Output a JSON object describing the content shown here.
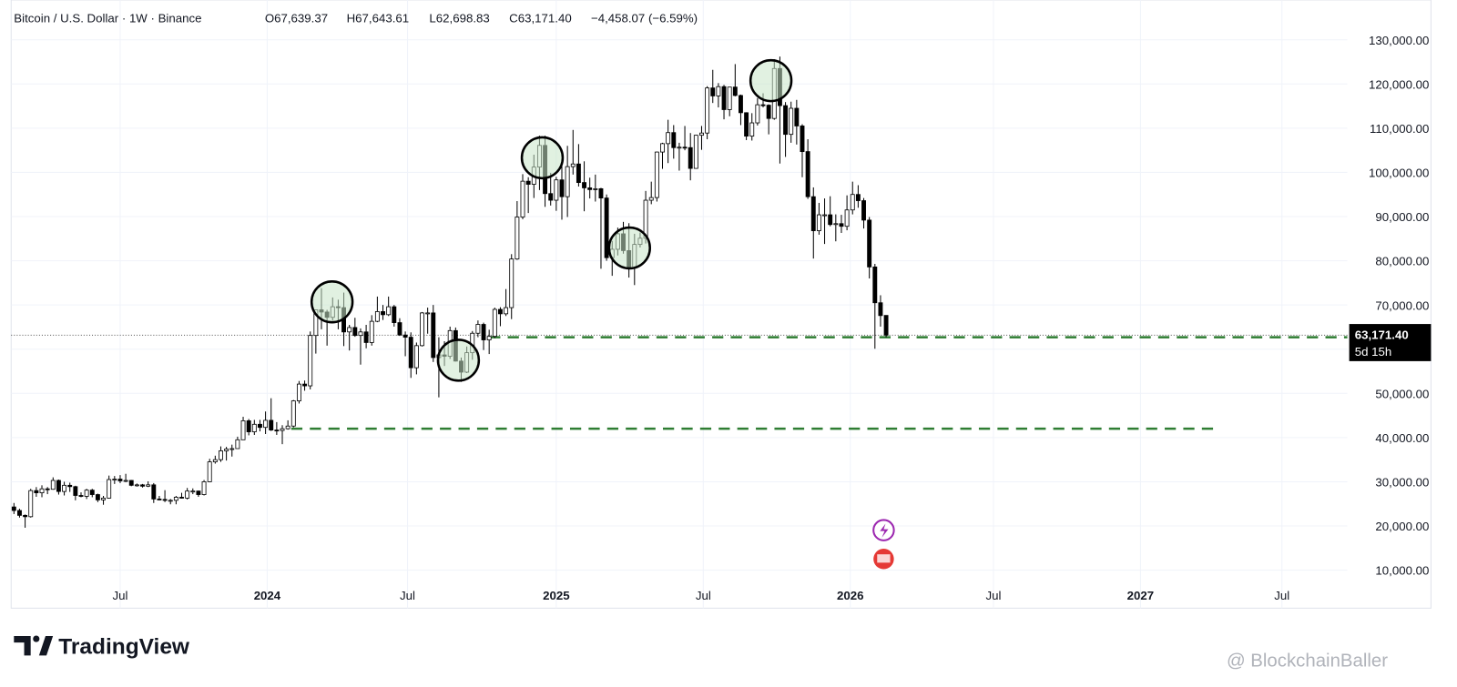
{
  "chart_data": {
    "type": "candlestick",
    "header": {
      "symbol": "Bitcoin / U.S. Dollar · 1W · Binance",
      "open": "O67,639.37",
      "high": "H67,643.61",
      "low": "L62,698.83",
      "close": "C63,171.40",
      "change": "−4,458.07 (−6.59%)"
    },
    "ohlc": [
      [
        24300,
        25200,
        22700,
        23500
      ],
      [
        23500,
        23900,
        21900,
        22400
      ],
      [
        22400,
        22600,
        19600,
        22100
      ],
      [
        22100,
        28400,
        21900,
        28000
      ],
      [
        28000,
        28800,
        26600,
        27500
      ],
      [
        27500,
        29200,
        26500,
        28400
      ],
      [
        28400,
        28800,
        27200,
        28300
      ],
      [
        28300,
        31000,
        28200,
        30300
      ],
      [
        30300,
        30500,
        27100,
        27800
      ],
      [
        27800,
        30000,
        26900,
        29200
      ],
      [
        29200,
        29800,
        27700,
        28900
      ],
      [
        28900,
        29100,
        25800,
        26900
      ],
      [
        26900,
        27600,
        26500,
        26700
      ],
      [
        26700,
        28400,
        26100,
        28100
      ],
      [
        28100,
        28400,
        26500,
        27100
      ],
      [
        27100,
        27300,
        25400,
        25900
      ],
      [
        25900,
        26800,
        24800,
        26300
      ],
      [
        26300,
        31400,
        26200,
        30500
      ],
      [
        30500,
        31300,
        29500,
        30600
      ],
      [
        30600,
        31500,
        29700,
        30200
      ],
      [
        30200,
        31800,
        29900,
        30300
      ],
      [
        30300,
        30400,
        29000,
        29200
      ],
      [
        29200,
        29600,
        28900,
        29300
      ],
      [
        29300,
        29500,
        28700,
        29000
      ],
      [
        29000,
        30100,
        28800,
        29300
      ],
      [
        29300,
        29700,
        25200,
        26100
      ],
      [
        26100,
        26800,
        25800,
        26000
      ],
      [
        26000,
        28100,
        25400,
        25800
      ],
      [
        25800,
        26100,
        24900,
        25800
      ],
      [
        25800,
        26800,
        24900,
        26500
      ],
      [
        26500,
        27500,
        26200,
        26300
      ],
      [
        26300,
        28600,
        26000,
        27900
      ],
      [
        27900,
        28500,
        27200,
        27900
      ],
      [
        27900,
        28000,
        26600,
        27100
      ],
      [
        27100,
        30400,
        26900,
        30000
      ],
      [
        30000,
        35200,
        29900,
        34500
      ],
      [
        34500,
        35900,
        34100,
        35000
      ],
      [
        35000,
        38000,
        34500,
        37000
      ],
      [
        37000,
        37900,
        34800,
        37400
      ],
      [
        37400,
        38400,
        35700,
        37500
      ],
      [
        37500,
        40200,
        37500,
        39500
      ],
      [
        39500,
        44700,
        39500,
        43800
      ],
      [
        43800,
        44200,
        40500,
        41300
      ],
      [
        41300,
        44000,
        40600,
        43000
      ],
      [
        43000,
        44000,
        41400,
        42300
      ],
      [
        42300,
        45900,
        40800,
        43900
      ],
      [
        43900,
        48900,
        41500,
        41700
      ],
      [
        41700,
        43500,
        40600,
        41600
      ],
      [
        41600,
        42800,
        38500,
        42000
      ],
      [
        42000,
        43900,
        41800,
        42600
      ],
      [
        42600,
        48500,
        42300,
        48300
      ],
      [
        48300,
        52800,
        47700,
        52100
      ],
      [
        52100,
        52900,
        50600,
        51700
      ],
      [
        51700,
        64000,
        50900,
        63100
      ],
      [
        63100,
        69000,
        59000,
        68900
      ],
      [
        68900,
        73800,
        64500,
        68400
      ],
      [
        68400,
        68900,
        60800,
        67200
      ],
      [
        67200,
        71700,
        66500,
        69600
      ],
      [
        69600,
        71200,
        64500,
        69400
      ],
      [
        69400,
        72800,
        60700,
        63900
      ],
      [
        63900,
        65500,
        59700,
        64900
      ],
      [
        64900,
        67100,
        62800,
        63100
      ],
      [
        63100,
        64700,
        56500,
        63900
      ],
      [
        63900,
        65500,
        60200,
        61500
      ],
      [
        61500,
        67700,
        60800,
        66300
      ],
      [
        66300,
        71900,
        66100,
        68500
      ],
      [
        68500,
        70000,
        66600,
        67800
      ],
      [
        67800,
        71900,
        67500,
        69600
      ],
      [
        69600,
        70000,
        65100,
        66000
      ],
      [
        66000,
        67000,
        63000,
        63200
      ],
      [
        63200,
        64000,
        58400,
        62700
      ],
      [
        62700,
        63800,
        53500,
        55800
      ],
      [
        55800,
        61500,
        54300,
        60800
      ],
      [
        60800,
        68400,
        60600,
        68200
      ],
      [
        68200,
        69400,
        63500,
        68200
      ],
      [
        68200,
        70000,
        57100,
        58100
      ],
      [
        58100,
        62700,
        49100,
        58700
      ],
      [
        58700,
        61800,
        56200,
        58400
      ],
      [
        58400,
        65100,
        57800,
        64200
      ],
      [
        64200,
        64900,
        57200,
        57300
      ],
      [
        57300,
        58100,
        52600,
        54800
      ],
      [
        54800,
        60600,
        54600,
        59200
      ],
      [
        59200,
        64100,
        57600,
        63600
      ],
      [
        63600,
        66500,
        62700,
        65600
      ],
      [
        65600,
        66000,
        59800,
        62100
      ],
      [
        62100,
        64400,
        58900,
        62900
      ],
      [
        62900,
        69400,
        62500,
        69000
      ],
      [
        69000,
        69500,
        65200,
        68000
      ],
      [
        68000,
        73600,
        67500,
        69400
      ],
      [
        69400,
        81500,
        66800,
        80400
      ],
      [
        80400,
        93500,
        80200,
        89900
      ],
      [
        89900,
        99600,
        89400,
        98000
      ],
      [
        98000,
        98900,
        90800,
        97300
      ],
      [
        97300,
        104000,
        94200,
        101200
      ],
      [
        101200,
        108300,
        96000,
        106100
      ],
      [
        106100,
        108300,
        92200,
        95200
      ],
      [
        95200,
        99900,
        92500,
        93700
      ],
      [
        93700,
        99000,
        91300,
        98300
      ],
      [
        98300,
        102700,
        89300,
        94500
      ],
      [
        94500,
        106000,
        89900,
        101300
      ],
      [
        101300,
        109600,
        99500,
        101900
      ],
      [
        101900,
        106400,
        96800,
        97700
      ],
      [
        97700,
        102500,
        91200,
        96500
      ],
      [
        96500,
        98800,
        94100,
        96100
      ],
      [
        96100,
        99500,
        93400,
        96300
      ],
      [
        96300,
        96500,
        78200,
        94200
      ],
      [
        94200,
        95000,
        80000,
        80700
      ],
      [
        80700,
        84500,
        76600,
        82600
      ],
      [
        82600,
        87500,
        81200,
        86100
      ],
      [
        86100,
        88800,
        81600,
        82300
      ],
      [
        82300,
        88500,
        76200,
        78400
      ],
      [
        78400,
        86100,
        74500,
        83700
      ],
      [
        83700,
        86400,
        83000,
        85100
      ],
      [
        85100,
        95800,
        83900,
        93700
      ],
      [
        93700,
        97900,
        92800,
        94300
      ],
      [
        94300,
        104700,
        93400,
        104600
      ],
      [
        104600,
        106700,
        100800,
        106500
      ],
      [
        106500,
        111900,
        102100,
        109000
      ],
      [
        109000,
        110700,
        103100,
        105600
      ],
      [
        105600,
        106700,
        100400,
        105700
      ],
      [
        105700,
        110500,
        105000,
        105600
      ],
      [
        105600,
        108900,
        98200,
        100900
      ],
      [
        100900,
        108500,
        100800,
        108400
      ],
      [
        108400,
        110500,
        105100,
        108900
      ],
      [
        108900,
        119500,
        107500,
        119100
      ],
      [
        119100,
        123200,
        115700,
        117300
      ],
      [
        117300,
        120200,
        114700,
        119400
      ],
      [
        119400,
        119800,
        112000,
        114200
      ],
      [
        114200,
        119300,
        112700,
        119300
      ],
      [
        119300,
        124500,
        117200,
        117400
      ],
      [
        117400,
        117600,
        110700,
        113500
      ],
      [
        113500,
        113600,
        107300,
        108200
      ],
      [
        108200,
        113400,
        107200,
        111200
      ],
      [
        111200,
        116800,
        110600,
        115300
      ],
      [
        115300,
        117900,
        114700,
        115200
      ],
      [
        115200,
        115400,
        108600,
        112200
      ],
      [
        112200,
        125600,
        111900,
        123500
      ],
      [
        123500,
        126200,
        102000,
        115100
      ],
      [
        115100,
        115900,
        103500,
        108600
      ],
      [
        108600,
        116000,
        106700,
        114500
      ],
      [
        114500,
        116400,
        106300,
        110500
      ],
      [
        110500,
        110900,
        98900,
        104700
      ],
      [
        104700,
        107500,
        94000,
        94500
      ],
      [
        94500,
        96600,
        80500,
        86800
      ],
      [
        86800,
        93100,
        85900,
        90400
      ],
      [
        90400,
        94100,
        83800,
        90400
      ],
      [
        90400,
        94600,
        87800,
        88200
      ],
      [
        88200,
        90500,
        84400,
        88400
      ],
      [
        88400,
        90400,
        86300,
        87800
      ],
      [
        87800,
        94800,
        86900,
        91500
      ],
      [
        91500,
        97900,
        90500,
        95000
      ],
      [
        95000,
        97100,
        92000,
        93600
      ],
      [
        93600,
        94200,
        87300,
        89200
      ],
      [
        89200,
        89900,
        76000,
        78600
      ],
      [
        78600,
        79300,
        60100,
        70500
      ],
      [
        70500,
        72200,
        65100,
        67600
      ],
      [
        67639.37,
        67643.61,
        62698.83,
        63171.4
      ]
    ],
    "up_color": "#ffffff",
    "down_color": "#000000",
    "wick_color": "#000000",
    "xlim": [
      -0.5,
      238.5
    ],
    "xticks": [
      {
        "value": 19,
        "label": "Jul"
      },
      {
        "value": 45.3,
        "label": "2024"
      },
      {
        "value": 70.4,
        "label": "Jul"
      },
      {
        "value": 97,
        "label": "2025"
      },
      {
        "value": 123.3,
        "label": "Jul"
      },
      {
        "value": 149.6,
        "label": "2026"
      },
      {
        "value": 175.2,
        "label": "Jul"
      },
      {
        "value": 201.5,
        "label": "2027"
      },
      {
        "value": 226.8,
        "label": "Jul"
      }
    ],
    "ylim": [
      1400,
      139000
    ],
    "yticks": [
      {
        "value": 10000,
        "label": "10,000.00"
      },
      {
        "value": 20000,
        "label": "20,000.00"
      },
      {
        "value": 30000,
        "label": "30,000.00"
      },
      {
        "value": 40000,
        "label": "40,000.00"
      },
      {
        "value": 50000,
        "label": "50,000.00"
      },
      {
        "value": 60000,
        "label": "60,000.00"
      },
      {
        "value": 70000,
        "label": "70,000.00"
      },
      {
        "value": 80000,
        "label": "80,000.00"
      },
      {
        "value": 90000,
        "label": "90,000.00"
      },
      {
        "value": 100000,
        "label": "100,000.00"
      },
      {
        "value": 110000,
        "label": "110,000.00"
      },
      {
        "value": 120000,
        "label": "120,000.00"
      },
      {
        "value": 130000,
        "label": "130,000.00"
      }
    ],
    "y_axis_side": "right",
    "grid": true,
    "last_price": 63171.4,
    "last_price_label": "63,171.40",
    "countdown": "5d 15h",
    "levels": [
      {
        "y": 62700,
        "from": 85,
        "color": "#2e7d32"
      },
      {
        "y": 42000,
        "from": 49.6,
        "to": 215.5,
        "color": "#2e7d32"
      }
    ],
    "highlights": [
      {
        "x": 56.9,
        "y": 70700
      },
      {
        "x": 79.5,
        "y": 57500
      },
      {
        "x": 94.5,
        "y": 103300
      },
      {
        "x": 110.1,
        "y": 82900
      },
      {
        "x": 135.4,
        "y": 120750
      }
    ],
    "highlight_color": "#c8e6c9",
    "brand": "TradingView",
    "watermark": "@ BlockchainBaller"
  }
}
